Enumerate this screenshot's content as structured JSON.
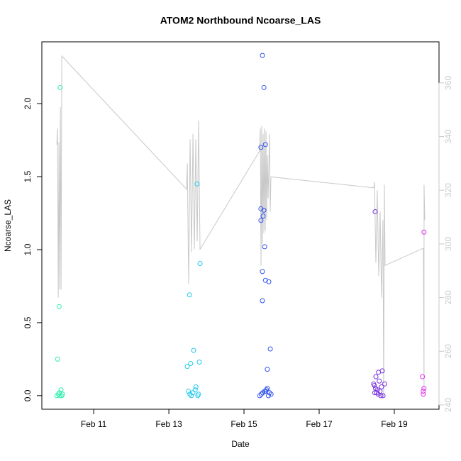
{
  "chart_data": {
    "type": "scatter",
    "title": "ATOM2 Northbound Ncoarse_LAS",
    "x_label": "Date",
    "y_label": "Ncoarse_LAS",
    "xlim": [
      9.62,
      20.19
    ],
    "xticks": [
      {
        "value": 11,
        "label": "Feb 11"
      },
      {
        "value": 13,
        "label": "Feb 13"
      },
      {
        "value": 15,
        "label": "Feb 15"
      },
      {
        "value": 17,
        "label": "Feb 17"
      },
      {
        "value": 19,
        "label": "Feb 19"
      }
    ],
    "ylim": [
      -0.093,
      2.423
    ],
    "yticks": [
      {
        "value": 0,
        "label": "0.0"
      },
      0.5,
      {
        "value": 1,
        "label": "1.0"
      },
      1.5,
      {
        "value": 2,
        "label": "2.0"
      }
    ],
    "y2lim": [
      238.4,
      375.3
    ],
    "y2ticks": [
      240,
      260,
      280,
      300,
      320,
      340,
      360
    ],
    "series": [
      {
        "type": "line",
        "axis": "y2",
        "color": "#c8c8c8",
        "x": [
          10.019,
          10.038,
          10.057,
          10.075,
          10.094,
          10.113,
          10.132,
          10.151,
          13.472,
          13.491,
          13.528,
          13.566,
          13.604,
          13.642,
          13.679,
          13.717,
          13.755,
          13.792,
          13.83,
          15.415,
          15.434,
          15.453,
          15.472,
          15.491,
          15.509,
          15.528,
          15.547,
          15.566,
          15.585,
          15.604,
          15.623,
          15.642,
          15.679,
          15.698,
          15.717,
          18.453,
          18.472,
          18.509,
          18.547,
          18.585,
          18.623,
          18.66,
          18.698,
          18.717,
          18.736,
          18.755,
          19.774,
          19.792,
          19.792,
          19.811
        ],
        "values": [
          337,
          343,
          280,
          338,
          283,
          351,
          283,
          370,
          320.4,
          330,
          285,
          339,
          297,
          341,
          298,
          339,
          301,
          346,
          298,
          334.6,
          343,
          292,
          344,
          300,
          341,
          304,
          343,
          305,
          342,
          309,
          333,
          317,
          341,
          312,
          325,
          320.9,
          323,
          293,
          320,
          288,
          312,
          280,
          309,
          243,
          322,
          292,
          298.4,
          245.5,
          322,
          309
        ]
      },
      {
        "color": "#33eeb0",
        "x": [
          10.11,
          10.08,
          10.04,
          10.02,
          10.06,
          10.09,
          10.13,
          10.15,
          10.1,
          10.17
        ],
        "values": [
          2.11,
          0.61,
          0.25,
          0.0,
          0.01,
          0.02,
          0.04,
          0.0,
          0.0,
          0.01
        ]
      },
      {
        "color": "#22c8ee",
        "x": [
          13.75,
          13.83,
          13.55,
          13.66,
          13.58,
          13.49,
          13.81,
          13.72,
          13.52,
          13.56,
          13.6,
          13.64,
          13.7,
          13.77,
          13.79
        ],
        "values": [
          1.45,
          0.905,
          0.69,
          0.31,
          0.22,
          0.2,
          0.23,
          0.06,
          0.03,
          0.01,
          0.0,
          0.02,
          0.04,
          0.0,
          0.01
        ]
      },
      {
        "color": "#3355ee",
        "x": [
          15.49,
          15.53,
          15.45,
          15.57,
          15.45,
          15.53,
          15.51,
          15.45,
          15.55,
          15.49,
          15.57,
          15.66,
          15.49,
          15.7,
          15.62,
          15.42,
          15.46,
          15.5,
          15.55,
          15.6,
          15.62,
          15.65,
          15.68,
          15.72,
          15.58
        ],
        "values": [
          2.33,
          2.11,
          1.7,
          1.72,
          1.28,
          1.27,
          1.23,
          1.2,
          1.02,
          0.85,
          0.79,
          0.78,
          0.65,
          0.32,
          0.18,
          0.0,
          0.01,
          0.02,
          0.03,
          0.04,
          0.05,
          0.0,
          0.02,
          0.01,
          0.03
        ]
      },
      {
        "color": "#7a33dd",
        "x": [
          18.49,
          18.68,
          18.58,
          18.51,
          18.6,
          18.45,
          18.74,
          18.47,
          18.66,
          18.5,
          18.55,
          18.62,
          18.53,
          18.57,
          18.64,
          18.7,
          18.48
        ],
        "values": [
          1.26,
          0.17,
          0.16,
          0.13,
          0.1,
          0.08,
          0.08,
          0.07,
          0.06,
          0.05,
          0.04,
          0.03,
          0.02,
          0.01,
          0.0,
          0.0,
          0.02
        ]
      },
      {
        "color": "#dd33ee",
        "x": [
          19.79,
          19.75,
          19.79,
          19.77,
          19.77
        ],
        "values": [
          1.12,
          0.13,
          0.05,
          0.03,
          0.01
        ]
      }
    ]
  }
}
